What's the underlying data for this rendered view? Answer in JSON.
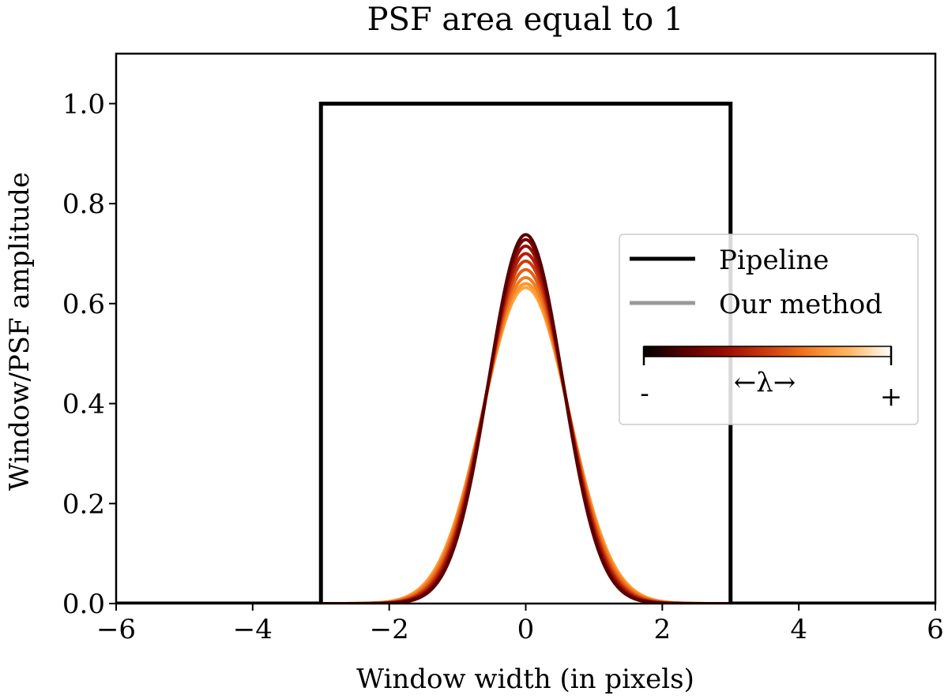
{
  "chart_data": {
    "type": "line",
    "title": "PSF area equal to 1",
    "xlabel": "Window width (in pixels)",
    "ylabel": "Window/PSF amplitude",
    "xlim": [
      -6,
      6
    ],
    "ylim": [
      0,
      1.1
    ],
    "xticks": [
      -6,
      -4,
      -2,
      0,
      2,
      4,
      6
    ],
    "xtick_labels": [
      "−6",
      "−4",
      "−2",
      "0",
      "2",
      "4",
      "6"
    ],
    "yticks": [
      0.0,
      0.2,
      0.4,
      0.6,
      0.8,
      1.0
    ],
    "ytick_labels": [
      "0.0",
      "0.2",
      "0.4",
      "0.6",
      "0.8",
      "1.0"
    ],
    "grid": false,
    "series": [
      {
        "name": "Pipeline",
        "color": "#000000",
        "kind": "step",
        "x": [
          -6,
          -3,
          -3,
          3,
          3,
          6
        ],
        "y": [
          0,
          0,
          1,
          1,
          0,
          0
        ]
      },
      {
        "name": "Our method",
        "legend_color": "#999999",
        "kind": "gaussian-family",
        "center": 0,
        "curves": [
          {
            "peak": 0.738,
            "color": "#5a0000"
          },
          {
            "peak": 0.728,
            "color": "#7a0303"
          },
          {
            "peak": 0.715,
            "color": "#9a0e05"
          },
          {
            "peak": 0.7,
            "color": "#b32008"
          },
          {
            "peak": 0.685,
            "color": "#cc3d0c"
          },
          {
            "peak": 0.668,
            "color": "#e0601a"
          },
          {
            "peak": 0.652,
            "color": "#f27c22"
          },
          {
            "peak": 0.64,
            "color": "#fd9530"
          },
          {
            "peak": 0.632,
            "color": "#ffa63f"
          }
        ]
      }
    ],
    "legend": {
      "placement": "center-right",
      "entries": [
        {
          "label": "Pipeline",
          "color": "#000000"
        },
        {
          "label": "Our method",
          "color": "#999999"
        }
      ],
      "colorbar": {
        "label": "←λ→",
        "min_label": "-",
        "max_label": "+",
        "colors": [
          "#000000",
          "#5a0000",
          "#9a0e05",
          "#cc3d0c",
          "#f27c22",
          "#ffb864",
          "#ffffff"
        ]
      }
    }
  }
}
